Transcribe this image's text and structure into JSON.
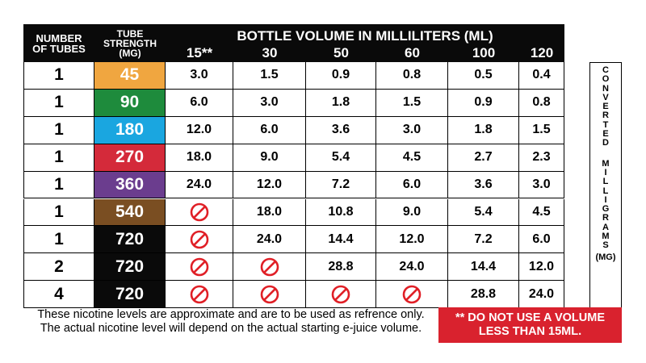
{
  "header": {
    "number_of_tubes": [
      "NUMBER",
      "OF TUBES"
    ],
    "tube_strength": [
      "TUBE",
      "STRENGTH",
      "(MG)"
    ],
    "bottle_volume": "BOTTLE VOLUME IN MILLILITERS (ML)",
    "volumes": [
      "15**",
      "30",
      "50",
      "60",
      "100",
      "120"
    ]
  },
  "chart_data": {
    "type": "table",
    "columns": [
      "NUMBER OF TUBES",
      "TUBE STRENGTH (MG)",
      "15**",
      "30",
      "50",
      "60",
      "100",
      "120"
    ],
    "rows": [
      {
        "tubes": "1",
        "strength": "45",
        "color": "#f0a640",
        "values": [
          "3.0",
          "1.5",
          "0.9",
          "0.8",
          "0.5",
          "0.4"
        ]
      },
      {
        "tubes": "1",
        "strength": "90",
        "color": "#1e8b3c",
        "values": [
          "6.0",
          "3.0",
          "1.8",
          "1.5",
          "0.9",
          "0.8"
        ]
      },
      {
        "tubes": "1",
        "strength": "180",
        "color": "#1aa6e0",
        "values": [
          "12.0",
          "6.0",
          "3.6",
          "3.0",
          "1.8",
          "1.5"
        ]
      },
      {
        "tubes": "1",
        "strength": "270",
        "color": "#d42a3a",
        "values": [
          "18.0",
          "9.0",
          "5.4",
          "4.5",
          "2.7",
          "2.3"
        ]
      },
      {
        "tubes": "1",
        "strength": "360",
        "color": "#6b3d8e",
        "values": [
          "24.0",
          "12.0",
          "7.2",
          "6.0",
          "3.6",
          "3.0"
        ]
      },
      {
        "tubes": "1",
        "strength": "540",
        "color": "#7a4e22",
        "values": [
          null,
          "18.0",
          "10.8",
          "9.0",
          "5.4",
          "4.5"
        ]
      },
      {
        "tubes": "1",
        "strength": "720",
        "color": "#0a0a0a",
        "values": [
          null,
          "24.0",
          "14.4",
          "12.0",
          "7.2",
          "6.0"
        ]
      },
      {
        "tubes": "2",
        "strength": "720",
        "color": "#0a0a0a",
        "values": [
          null,
          null,
          "28.8",
          "24.0",
          "14.4",
          "12.0"
        ]
      },
      {
        "tubes": "4",
        "strength": "720",
        "color": "#0a0a0a",
        "values": [
          null,
          null,
          null,
          null,
          "28.8",
          "24.0"
        ]
      }
    ],
    "not_allowed_icon": "prohibited-icon"
  },
  "side_label": {
    "word1": "CONVERTED",
    "word2": "MILLIGRAMS",
    "unit": "(MG)"
  },
  "footnote": [
    "These nicotine levels are approximate and are to be used as refrence only.",
    "The actual nicotine level will depend on the actual starting e-juice volume."
  ],
  "warning": [
    "** DO NOT USE A VOLUME",
    "LESS THAN 15ML."
  ],
  "colors": {
    "header_bg": "#0a0a0a",
    "prohibited": "#e01f26",
    "warning_bg": "#d9222e"
  }
}
